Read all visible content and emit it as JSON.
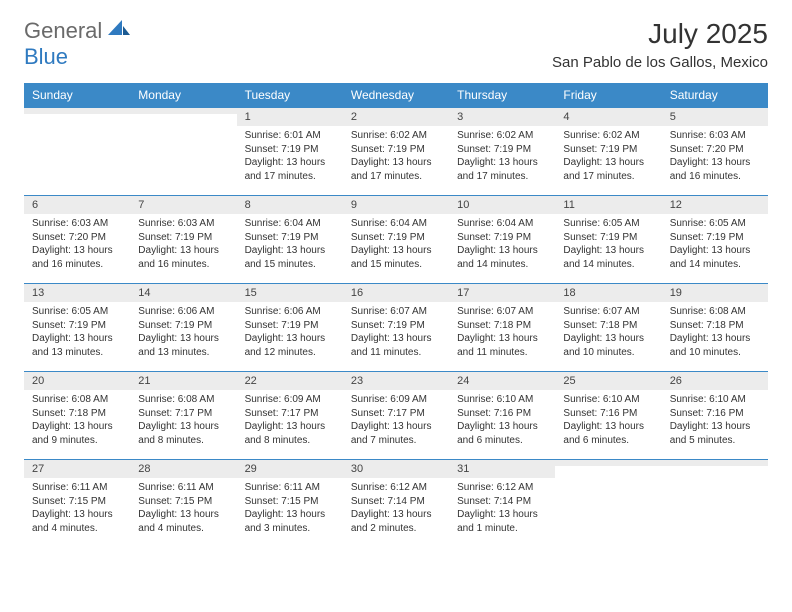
{
  "brand": {
    "part1": "General",
    "part2": "Blue"
  },
  "title": "July 2025",
  "location": "San Pablo de los Gallos, Mexico",
  "colors": {
    "header_bg": "#3b89c7",
    "daynum_bg": "#ececec",
    "text": "#333333",
    "logo_gray": "#6a6a6a",
    "logo_blue": "#2f7ac0"
  },
  "weekdays": [
    "Sunday",
    "Monday",
    "Tuesday",
    "Wednesday",
    "Thursday",
    "Friday",
    "Saturday"
  ],
  "weeks": [
    [
      {
        "n": "",
        "sr": "",
        "ss": "",
        "dl": ""
      },
      {
        "n": "",
        "sr": "",
        "ss": "",
        "dl": ""
      },
      {
        "n": "1",
        "sr": "Sunrise: 6:01 AM",
        "ss": "Sunset: 7:19 PM",
        "dl": "Daylight: 13 hours and 17 minutes."
      },
      {
        "n": "2",
        "sr": "Sunrise: 6:02 AM",
        "ss": "Sunset: 7:19 PM",
        "dl": "Daylight: 13 hours and 17 minutes."
      },
      {
        "n": "3",
        "sr": "Sunrise: 6:02 AM",
        "ss": "Sunset: 7:19 PM",
        "dl": "Daylight: 13 hours and 17 minutes."
      },
      {
        "n": "4",
        "sr": "Sunrise: 6:02 AM",
        "ss": "Sunset: 7:19 PM",
        "dl": "Daylight: 13 hours and 17 minutes."
      },
      {
        "n": "5",
        "sr": "Sunrise: 6:03 AM",
        "ss": "Sunset: 7:20 PM",
        "dl": "Daylight: 13 hours and 16 minutes."
      }
    ],
    [
      {
        "n": "6",
        "sr": "Sunrise: 6:03 AM",
        "ss": "Sunset: 7:20 PM",
        "dl": "Daylight: 13 hours and 16 minutes."
      },
      {
        "n": "7",
        "sr": "Sunrise: 6:03 AM",
        "ss": "Sunset: 7:19 PM",
        "dl": "Daylight: 13 hours and 16 minutes."
      },
      {
        "n": "8",
        "sr": "Sunrise: 6:04 AM",
        "ss": "Sunset: 7:19 PM",
        "dl": "Daylight: 13 hours and 15 minutes."
      },
      {
        "n": "9",
        "sr": "Sunrise: 6:04 AM",
        "ss": "Sunset: 7:19 PM",
        "dl": "Daylight: 13 hours and 15 minutes."
      },
      {
        "n": "10",
        "sr": "Sunrise: 6:04 AM",
        "ss": "Sunset: 7:19 PM",
        "dl": "Daylight: 13 hours and 14 minutes."
      },
      {
        "n": "11",
        "sr": "Sunrise: 6:05 AM",
        "ss": "Sunset: 7:19 PM",
        "dl": "Daylight: 13 hours and 14 minutes."
      },
      {
        "n": "12",
        "sr": "Sunrise: 6:05 AM",
        "ss": "Sunset: 7:19 PM",
        "dl": "Daylight: 13 hours and 14 minutes."
      }
    ],
    [
      {
        "n": "13",
        "sr": "Sunrise: 6:05 AM",
        "ss": "Sunset: 7:19 PM",
        "dl": "Daylight: 13 hours and 13 minutes."
      },
      {
        "n": "14",
        "sr": "Sunrise: 6:06 AM",
        "ss": "Sunset: 7:19 PM",
        "dl": "Daylight: 13 hours and 13 minutes."
      },
      {
        "n": "15",
        "sr": "Sunrise: 6:06 AM",
        "ss": "Sunset: 7:19 PM",
        "dl": "Daylight: 13 hours and 12 minutes."
      },
      {
        "n": "16",
        "sr": "Sunrise: 6:07 AM",
        "ss": "Sunset: 7:19 PM",
        "dl": "Daylight: 13 hours and 11 minutes."
      },
      {
        "n": "17",
        "sr": "Sunrise: 6:07 AM",
        "ss": "Sunset: 7:18 PM",
        "dl": "Daylight: 13 hours and 11 minutes."
      },
      {
        "n": "18",
        "sr": "Sunrise: 6:07 AM",
        "ss": "Sunset: 7:18 PM",
        "dl": "Daylight: 13 hours and 10 minutes."
      },
      {
        "n": "19",
        "sr": "Sunrise: 6:08 AM",
        "ss": "Sunset: 7:18 PM",
        "dl": "Daylight: 13 hours and 10 minutes."
      }
    ],
    [
      {
        "n": "20",
        "sr": "Sunrise: 6:08 AM",
        "ss": "Sunset: 7:18 PM",
        "dl": "Daylight: 13 hours and 9 minutes."
      },
      {
        "n": "21",
        "sr": "Sunrise: 6:08 AM",
        "ss": "Sunset: 7:17 PM",
        "dl": "Daylight: 13 hours and 8 minutes."
      },
      {
        "n": "22",
        "sr": "Sunrise: 6:09 AM",
        "ss": "Sunset: 7:17 PM",
        "dl": "Daylight: 13 hours and 8 minutes."
      },
      {
        "n": "23",
        "sr": "Sunrise: 6:09 AM",
        "ss": "Sunset: 7:17 PM",
        "dl": "Daylight: 13 hours and 7 minutes."
      },
      {
        "n": "24",
        "sr": "Sunrise: 6:10 AM",
        "ss": "Sunset: 7:16 PM",
        "dl": "Daylight: 13 hours and 6 minutes."
      },
      {
        "n": "25",
        "sr": "Sunrise: 6:10 AM",
        "ss": "Sunset: 7:16 PM",
        "dl": "Daylight: 13 hours and 6 minutes."
      },
      {
        "n": "26",
        "sr": "Sunrise: 6:10 AM",
        "ss": "Sunset: 7:16 PM",
        "dl": "Daylight: 13 hours and 5 minutes."
      }
    ],
    [
      {
        "n": "27",
        "sr": "Sunrise: 6:11 AM",
        "ss": "Sunset: 7:15 PM",
        "dl": "Daylight: 13 hours and 4 minutes."
      },
      {
        "n": "28",
        "sr": "Sunrise: 6:11 AM",
        "ss": "Sunset: 7:15 PM",
        "dl": "Daylight: 13 hours and 4 minutes."
      },
      {
        "n": "29",
        "sr": "Sunrise: 6:11 AM",
        "ss": "Sunset: 7:15 PM",
        "dl": "Daylight: 13 hours and 3 minutes."
      },
      {
        "n": "30",
        "sr": "Sunrise: 6:12 AM",
        "ss": "Sunset: 7:14 PM",
        "dl": "Daylight: 13 hours and 2 minutes."
      },
      {
        "n": "31",
        "sr": "Sunrise: 6:12 AM",
        "ss": "Sunset: 7:14 PM",
        "dl": "Daylight: 13 hours and 1 minute."
      },
      {
        "n": "",
        "sr": "",
        "ss": "",
        "dl": ""
      },
      {
        "n": "",
        "sr": "",
        "ss": "",
        "dl": ""
      }
    ]
  ]
}
